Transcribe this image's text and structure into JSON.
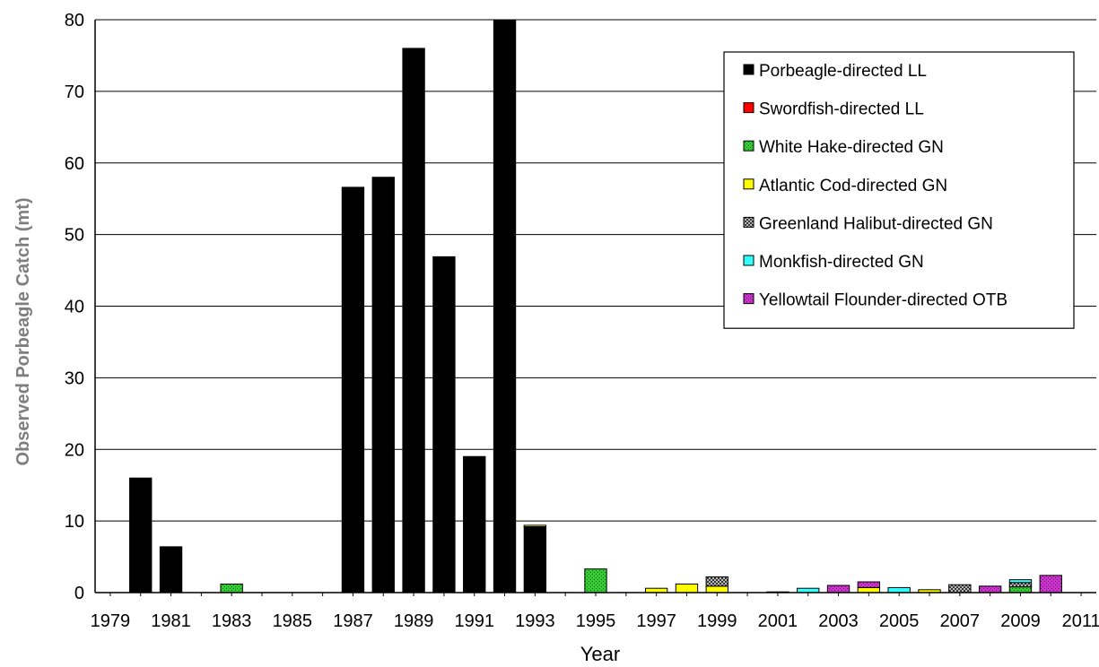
{
  "chart_data": {
    "type": "bar",
    "stacked": true,
    "xlabel": "Year",
    "ylabel": "Observed Porbeagle Catch  (mt)",
    "ylim": [
      0,
      80
    ],
    "yticks": [
      0,
      10,
      20,
      30,
      40,
      50,
      60,
      70,
      80
    ],
    "grid": "horizontal",
    "legend_position": "top-right",
    "x_tick_labels": [
      "1979",
      "1981",
      "1983",
      "1985",
      "1987",
      "1989",
      "1991",
      "1993",
      "1995",
      "1997",
      "1999",
      "2001",
      "2003",
      "2005",
      "2007",
      "2009",
      "2011"
    ],
    "categories": [
      "1979",
      "1980",
      "1981",
      "1982",
      "1983",
      "1984",
      "1985",
      "1986",
      "1987",
      "1988",
      "1989",
      "1990",
      "1991",
      "1992",
      "1993",
      "1994",
      "1995",
      "1996",
      "1997",
      "1998",
      "1999",
      "2000",
      "2001",
      "2002",
      "2003",
      "2004",
      "2005",
      "2006",
      "2007",
      "2008",
      "2009",
      "2010",
      "2011"
    ],
    "series": [
      {
        "name": "Porbeagle-directed LL",
        "color": "#000000",
        "pattern": "solid",
        "values": [
          0,
          16,
          6.4,
          0,
          0,
          0,
          0,
          0,
          56.6,
          58,
          76,
          46.9,
          19,
          80,
          9.2,
          0,
          0,
          0,
          0,
          0,
          0,
          0,
          0,
          0,
          0,
          0,
          0,
          0,
          0,
          0,
          0,
          0,
          0
        ]
      },
      {
        "name": "Swordfish-directed LL",
        "color": "#ff0000",
        "pattern": "solid",
        "values": [
          0,
          0,
          0,
          0,
          0,
          0,
          0,
          0,
          0,
          0,
          0,
          0,
          0,
          0,
          0,
          0,
          0,
          0,
          0,
          0,
          0,
          0,
          0,
          0,
          0,
          0,
          0,
          0,
          0,
          0,
          0,
          0,
          0
        ]
      },
      {
        "name": "White Hake-directed GN",
        "color": "#33cc33",
        "pattern": "dots",
        "values": [
          0,
          0,
          0,
          0,
          1.2,
          0,
          0,
          0,
          0,
          0,
          0,
          0,
          0,
          0,
          0,
          0,
          3.3,
          0,
          0,
          0,
          0,
          0,
          0,
          0,
          0,
          0,
          0,
          0,
          0,
          0,
          0.8,
          0,
          0
        ]
      },
      {
        "name": "Atlantic Cod-directed GN",
        "color": "#ffff00",
        "pattern": "solid",
        "values": [
          0,
          0,
          0,
          0,
          0,
          0,
          0,
          0,
          0,
          0,
          0,
          0,
          0,
          0,
          0.2,
          0,
          0,
          0,
          0.6,
          1.2,
          0.9,
          0,
          0,
          0,
          0,
          0.7,
          0,
          0.4,
          0,
          0,
          0,
          0,
          0
        ]
      },
      {
        "name": "Greenland Halibut-directed GN",
        "color": "#555555",
        "pattern": "check",
        "values": [
          0,
          0,
          0,
          0,
          0,
          0,
          0,
          0,
          0,
          0,
          0,
          0,
          0,
          0,
          0,
          0,
          0,
          0,
          0,
          0,
          1.3,
          0,
          0,
          0,
          0,
          0,
          0,
          0,
          1.1,
          0,
          0.6,
          0,
          0
        ]
      },
      {
        "name": "Monkfish-directed GN",
        "color": "#33ffff",
        "pattern": "solid",
        "values": [
          0,
          0,
          0,
          0,
          0,
          0,
          0,
          0,
          0,
          0,
          0,
          0,
          0,
          0,
          0,
          0,
          0,
          0,
          0,
          0,
          0,
          0,
          0.1,
          0.6,
          0,
          0,
          0.7,
          0,
          0,
          0,
          0.4,
          0,
          0
        ]
      },
      {
        "name": "Yellowtail Flounder-directed OTB",
        "color": "#cc33cc",
        "pattern": "dots",
        "values": [
          0,
          0,
          0,
          0,
          0,
          0,
          0,
          0,
          0,
          0,
          0,
          0,
          0,
          0,
          0,
          0,
          0,
          0,
          0,
          0,
          0,
          0,
          0,
          0,
          1,
          0.8,
          0,
          0,
          0,
          0.9,
          0,
          2.4,
          0
        ]
      }
    ]
  }
}
